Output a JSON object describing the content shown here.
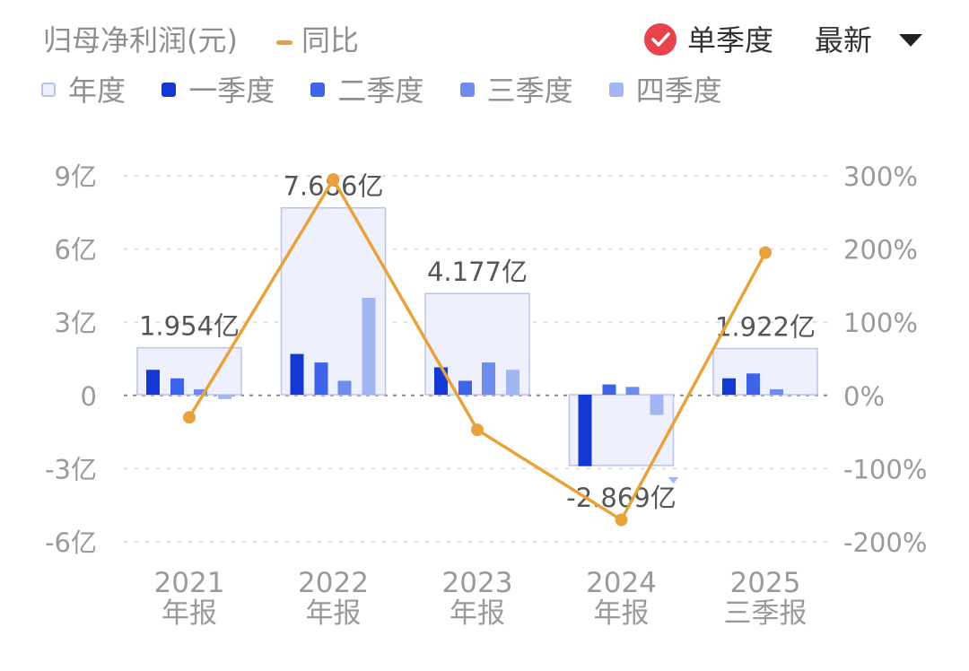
{
  "header": {
    "title": "归母净利润(元)",
    "yoy_label": "同比",
    "mode_label": "单季度",
    "latest_label": "最新"
  },
  "legend": [
    {
      "label": "年度",
      "color": "#eef1fd",
      "border": "#b9c4ea"
    },
    {
      "label": "一季度",
      "color": "#1438d4"
    },
    {
      "label": "二季度",
      "color": "#3e63e8"
    },
    {
      "label": "三季度",
      "color": "#6d8cee"
    },
    {
      "label": "四季度",
      "color": "#a3b5f3"
    }
  ],
  "colors": {
    "annual_fill": "#eef1fd",
    "annual_border": "#b9c4ea",
    "line": "#e8a23b",
    "grid": "#dddddd",
    "zero": "#888888",
    "axis_text": "#9a9a9a",
    "label_text": "#555555"
  },
  "chart_data": {
    "type": "bar",
    "categories": [
      [
        "2021",
        "年报"
      ],
      [
        "2022",
        "年报"
      ],
      [
        "2023",
        "年报"
      ],
      [
        "2024",
        "年报"
      ],
      [
        "2025",
        "三季报"
      ]
    ],
    "annual_labels": [
      "1.954亿",
      "7.686亿",
      "4.177亿",
      "-2.869亿",
      "1.922亿"
    ],
    "series": [
      {
        "name": "年度",
        "values": [
          1.954,
          7.686,
          4.177,
          -2.869,
          1.922
        ]
      },
      {
        "name": "一季度",
        "values": [
          1.05,
          1.7,
          1.15,
          -2.9,
          0.7
        ]
      },
      {
        "name": "二季度",
        "values": [
          0.7,
          1.35,
          0.6,
          0.45,
          0.9
        ]
      },
      {
        "name": "三季度",
        "values": [
          0.25,
          0.6,
          1.35,
          0.35,
          0.25
        ]
      },
      {
        "name": "四季度",
        "values": [
          -0.15,
          4.0,
          1.05,
          -0.8,
          null
        ]
      }
    ],
    "line_series": {
      "name": "同比",
      "values": [
        -30,
        295,
        -47,
        -170,
        195
      ]
    },
    "y_left": {
      "ticks": [
        9,
        6,
        3,
        0,
        -3,
        -6
      ],
      "tick_labels": [
        "9亿",
        "6亿",
        "3亿",
        "0",
        "-3亿",
        "-6亿"
      ],
      "range": [
        -6,
        9
      ]
    },
    "y_right": {
      "ticks": [
        300,
        200,
        100,
        0,
        -100,
        -200
      ],
      "tick_labels": [
        "300%",
        "200%",
        "100%",
        "0%",
        "-100%",
        "-200%"
      ],
      "range": [
        -200,
        300
      ]
    },
    "grid": true
  }
}
